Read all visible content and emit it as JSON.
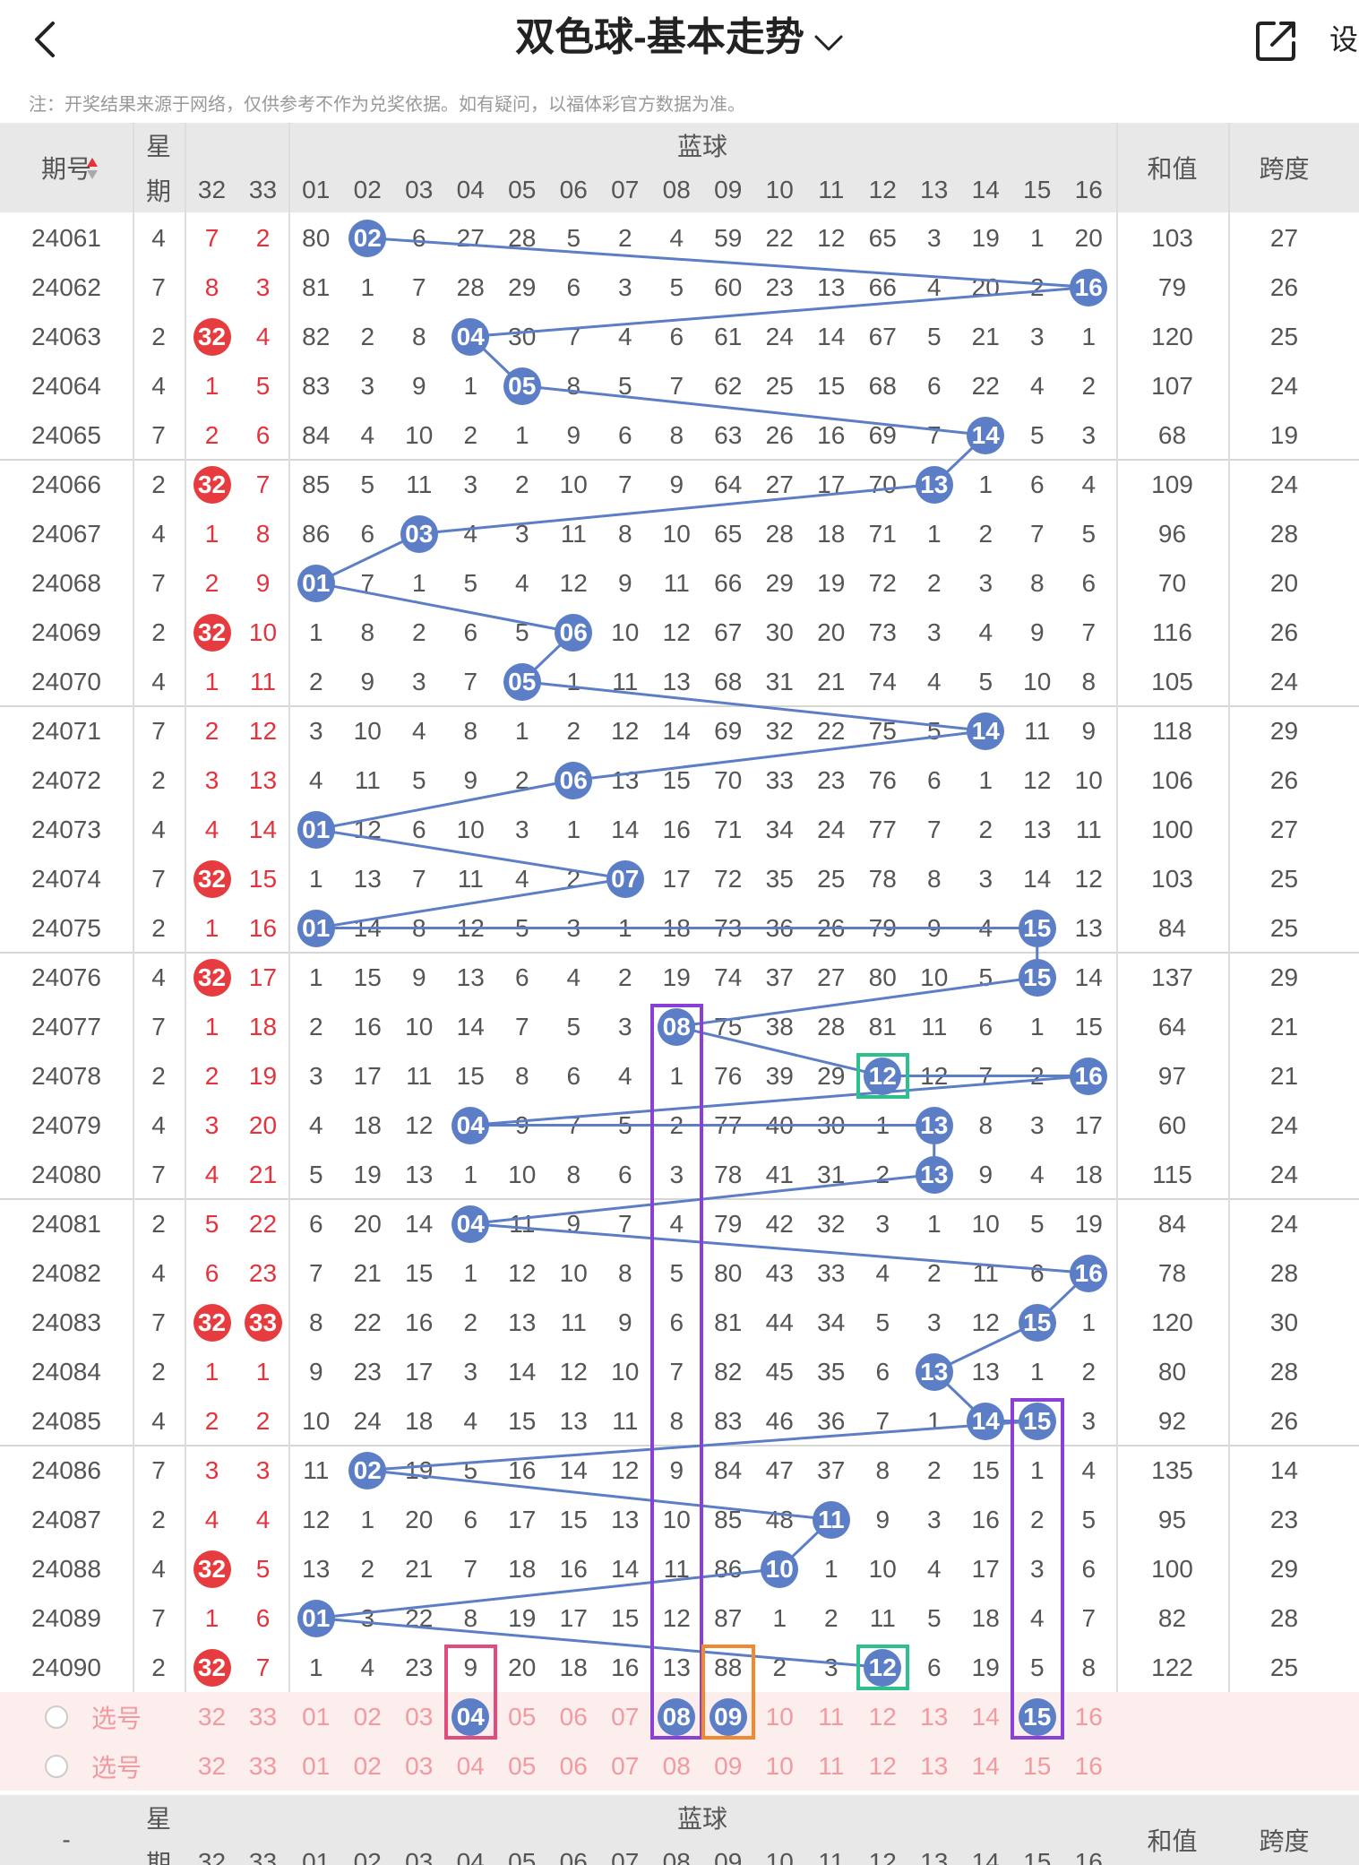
{
  "header": {
    "title": "双色球-基本走势",
    "settings_label": "设"
  },
  "notice": "注：开奖结果来源于网络，仅供参考不作为兑奖依据。如有疑问，以福体彩官方数据为准。",
  "table_header": {
    "period": "期号",
    "week_top": "星",
    "week_bottom": "期",
    "blue_title": "蓝球",
    "sum": "和值",
    "span": "跨度"
  },
  "red_col_labels": [
    "32",
    "33"
  ],
  "blue_col_labels": [
    "01",
    "02",
    "03",
    "04",
    "05",
    "06",
    "07",
    "08",
    "09",
    "10",
    "11",
    "12",
    "13",
    "14",
    "15",
    "16"
  ],
  "rows": [
    {
      "p": "24061",
      "w": "4",
      "r": [
        "7",
        "2"
      ],
      "b": [
        "80",
        "02",
        "6",
        "27",
        "28",
        "5",
        "2",
        "4",
        "59",
        "22",
        "12",
        "65",
        "3",
        "19",
        "1",
        "20"
      ],
      "s": "103",
      "k": "27"
    },
    {
      "p": "24062",
      "w": "7",
      "r": [
        "8",
        "3"
      ],
      "b": [
        "81",
        "1",
        "7",
        "28",
        "29",
        "6",
        "3",
        "5",
        "60",
        "23",
        "13",
        "66",
        "4",
        "20",
        "2",
        "16"
      ],
      "s": "79",
      "k": "26"
    },
    {
      "p": "24063",
      "w": "2",
      "r": [
        "32",
        "4"
      ],
      "b": [
        "82",
        "2",
        "8",
        "04",
        "30",
        "7",
        "4",
        "6",
        "61",
        "24",
        "14",
        "67",
        "5",
        "21",
        "3",
        "1"
      ],
      "s": "120",
      "k": "25"
    },
    {
      "p": "24064",
      "w": "4",
      "r": [
        "1",
        "5"
      ],
      "b": [
        "83",
        "3",
        "9",
        "1",
        "05",
        "8",
        "5",
        "7",
        "62",
        "25",
        "15",
        "68",
        "6",
        "22",
        "4",
        "2"
      ],
      "s": "107",
      "k": "24"
    },
    {
      "p": "24065",
      "w": "7",
      "r": [
        "2",
        "6"
      ],
      "b": [
        "84",
        "4",
        "10",
        "2",
        "1",
        "9",
        "6",
        "8",
        "63",
        "26",
        "16",
        "69",
        "7",
        "14",
        "5",
        "3"
      ],
      "s": "68",
      "k": "19"
    },
    {
      "p": "24066",
      "w": "2",
      "r": [
        "32",
        "7"
      ],
      "b": [
        "85",
        "5",
        "11",
        "3",
        "2",
        "10",
        "7",
        "9",
        "64",
        "27",
        "17",
        "70",
        "13",
        "1",
        "6",
        "4"
      ],
      "s": "109",
      "k": "24"
    },
    {
      "p": "24067",
      "w": "4",
      "r": [
        "1",
        "8"
      ],
      "b": [
        "86",
        "6",
        "03",
        "4",
        "3",
        "11",
        "8",
        "10",
        "65",
        "28",
        "18",
        "71",
        "1",
        "2",
        "7",
        "5"
      ],
      "s": "96",
      "k": "28"
    },
    {
      "p": "24068",
      "w": "7",
      "r": [
        "2",
        "9"
      ],
      "b": [
        "01",
        "7",
        "1",
        "5",
        "4",
        "12",
        "9",
        "11",
        "66",
        "29",
        "19",
        "72",
        "2",
        "3",
        "8",
        "6"
      ],
      "s": "70",
      "k": "20"
    },
    {
      "p": "24069",
      "w": "2",
      "r": [
        "32",
        "10"
      ],
      "b": [
        "1",
        "8",
        "2",
        "6",
        "5",
        "06",
        "10",
        "12",
        "67",
        "30",
        "20",
        "73",
        "3",
        "4",
        "9",
        "7"
      ],
      "s": "116",
      "k": "26"
    },
    {
      "p": "24070",
      "w": "4",
      "r": [
        "1",
        "11"
      ],
      "b": [
        "2",
        "9",
        "3",
        "7",
        "05",
        "1",
        "11",
        "13",
        "68",
        "31",
        "21",
        "74",
        "4",
        "5",
        "10",
        "8"
      ],
      "s": "105",
      "k": "24"
    },
    {
      "p": "24071",
      "w": "7",
      "r": [
        "2",
        "12"
      ],
      "b": [
        "3",
        "10",
        "4",
        "8",
        "1",
        "2",
        "12",
        "14",
        "69",
        "32",
        "22",
        "75",
        "5",
        "14",
        "11",
        "9"
      ],
      "s": "118",
      "k": "29"
    },
    {
      "p": "24072",
      "w": "2",
      "r": [
        "3",
        "13"
      ],
      "b": [
        "4",
        "11",
        "5",
        "9",
        "2",
        "06",
        "13",
        "15",
        "70",
        "33",
        "23",
        "76",
        "6",
        "1",
        "12",
        "10"
      ],
      "s": "106",
      "k": "26"
    },
    {
      "p": "24073",
      "w": "4",
      "r": [
        "4",
        "14"
      ],
      "b": [
        "01",
        "12",
        "6",
        "10",
        "3",
        "1",
        "14",
        "16",
        "71",
        "34",
        "24",
        "77",
        "7",
        "2",
        "13",
        "11"
      ],
      "s": "100",
      "k": "27"
    },
    {
      "p": "24074",
      "w": "7",
      "r": [
        "32",
        "15"
      ],
      "b": [
        "1",
        "13",
        "7",
        "11",
        "4",
        "2",
        "07",
        "17",
        "72",
        "35",
        "25",
        "78",
        "8",
        "3",
        "14",
        "12"
      ],
      "s": "103",
      "k": "25"
    },
    {
      "p": "24075",
      "w": "2",
      "r": [
        "1",
        "16"
      ],
      "b": [
        "01",
        "14",
        "8",
        "12",
        "5",
        "3",
        "1",
        "18",
        "73",
        "36",
        "26",
        "79",
        "9",
        "4",
        "15",
        "13"
      ],
      "s": "84",
      "k": "25"
    },
    {
      "p": "24076",
      "w": "4",
      "r": [
        "32",
        "17"
      ],
      "b": [
        "1",
        "15",
        "9",
        "13",
        "6",
        "4",
        "2",
        "19",
        "74",
        "37",
        "27",
        "80",
        "10",
        "5",
        "15",
        "14"
      ],
      "s": "137",
      "k": "29"
    },
    {
      "p": "24077",
      "w": "7",
      "r": [
        "1",
        "18"
      ],
      "b": [
        "2",
        "16",
        "10",
        "14",
        "7",
        "5",
        "3",
        "08",
        "75",
        "38",
        "28",
        "81",
        "11",
        "6",
        "1",
        "15"
      ],
      "s": "64",
      "k": "21"
    },
    {
      "p": "24078",
      "w": "2",
      "r": [
        "2",
        "19"
      ],
      "b": [
        "3",
        "17",
        "11",
        "15",
        "8",
        "6",
        "4",
        "1",
        "76",
        "39",
        "29",
        "12",
        "12",
        "7",
        "2",
        "16"
      ],
      "s": "97",
      "k": "21"
    },
    {
      "p": "24079",
      "w": "4",
      "r": [
        "3",
        "20"
      ],
      "b": [
        "4",
        "18",
        "12",
        "04",
        "9",
        "7",
        "5",
        "2",
        "77",
        "40",
        "30",
        "1",
        "13",
        "8",
        "3",
        "17"
      ],
      "s": "60",
      "k": "24"
    },
    {
      "p": "24080",
      "w": "7",
      "r": [
        "4",
        "21"
      ],
      "b": [
        "5",
        "19",
        "13",
        "1",
        "10",
        "8",
        "6",
        "3",
        "78",
        "41",
        "31",
        "2",
        "13",
        "9",
        "4",
        "18"
      ],
      "s": "115",
      "k": "24"
    },
    {
      "p": "24081",
      "w": "2",
      "r": [
        "5",
        "22"
      ],
      "b": [
        "6",
        "20",
        "14",
        "04",
        "11",
        "9",
        "7",
        "4",
        "79",
        "42",
        "32",
        "3",
        "1",
        "10",
        "5",
        "19"
      ],
      "s": "84",
      "k": "24"
    },
    {
      "p": "24082",
      "w": "4",
      "r": [
        "6",
        "23"
      ],
      "b": [
        "7",
        "21",
        "15",
        "1",
        "12",
        "10",
        "8",
        "5",
        "80",
        "43",
        "33",
        "4",
        "2",
        "11",
        "6",
        "16"
      ],
      "s": "78",
      "k": "28"
    },
    {
      "p": "24083",
      "w": "7",
      "r": [
        "32",
        "33"
      ],
      "b": [
        "8",
        "22",
        "16",
        "2",
        "13",
        "11",
        "9",
        "6",
        "81",
        "44",
        "34",
        "5",
        "3",
        "12",
        "15",
        "1"
      ],
      "s": "120",
      "k": "30"
    },
    {
      "p": "24084",
      "w": "2",
      "r": [
        "1",
        "1"
      ],
      "b": [
        "9",
        "23",
        "17",
        "3",
        "14",
        "12",
        "10",
        "7",
        "82",
        "45",
        "35",
        "6",
        "13",
        "13",
        "1",
        "2"
      ],
      "s": "80",
      "k": "28"
    },
    {
      "p": "24085",
      "w": "4",
      "r": [
        "2",
        "2"
      ],
      "b": [
        "10",
        "24",
        "18",
        "4",
        "15",
        "13",
        "11",
        "8",
        "83",
        "46",
        "36",
        "7",
        "1",
        "14",
        "15",
        "3"
      ],
      "s": "92",
      "k": "26"
    },
    {
      "p": "24086",
      "w": "7",
      "r": [
        "3",
        "3"
      ],
      "b": [
        "11",
        "02",
        "19",
        "5",
        "16",
        "14",
        "12",
        "9",
        "84",
        "47",
        "37",
        "8",
        "2",
        "15",
        "1",
        "4"
      ],
      "s": "135",
      "k": "14"
    },
    {
      "p": "24087",
      "w": "2",
      "r": [
        "4",
        "4"
      ],
      "b": [
        "12",
        "1",
        "20",
        "6",
        "17",
        "15",
        "13",
        "10",
        "85",
        "48",
        "11",
        "9",
        "3",
        "16",
        "2",
        "5"
      ],
      "s": "95",
      "k": "23"
    },
    {
      "p": "24088",
      "w": "4",
      "r": [
        "32",
        "5"
      ],
      "b": [
        "13",
        "2",
        "21",
        "7",
        "18",
        "16",
        "14",
        "11",
        "86",
        "10",
        "1",
        "10",
        "4",
        "17",
        "3",
        "6"
      ],
      "s": "100",
      "k": "29"
    },
    {
      "p": "24089",
      "w": "7",
      "r": [
        "1",
        "6"
      ],
      "b": [
        "01",
        "3",
        "22",
        "8",
        "19",
        "17",
        "15",
        "12",
        "87",
        "1",
        "2",
        "11",
        "5",
        "18",
        "4",
        "7"
      ],
      "s": "82",
      "k": "28"
    },
    {
      "p": "24090",
      "w": "2",
      "r": [
        "32",
        "7"
      ],
      "b": [
        "1",
        "4",
        "23",
        "9",
        "20",
        "18",
        "16",
        "13",
        "88",
        "2",
        "3",
        "12",
        "6",
        "19",
        "5",
        "8"
      ],
      "s": "122",
      "k": "25"
    }
  ],
  "pick_label": "选号",
  "pick_red": [
    "32",
    "33"
  ],
  "pick_blue": [
    "01",
    "02",
    "03",
    "04",
    "05",
    "06",
    "07",
    "08",
    "09",
    "10",
    "11",
    "12",
    "13",
    "14",
    "15",
    "16"
  ],
  "footer_header": {
    "period": "-",
    "week_top": "星",
    "week_bottom": "期",
    "blue_title": "蓝球",
    "sum": "和值",
    "span": "跨度"
  },
  "colors": {
    "blue_ball": "#5b7ec6",
    "red_ball": "#e63c3f",
    "red_text": "#e5333d",
    "select_bg": "#fdeeee",
    "header_bg": "#e8e8e8",
    "box_purple": "#8a3fd6",
    "box_green": "#2dbf8c",
    "box_pink": "#e04d7c",
    "box_orange": "#f08a2e"
  },
  "icons": {
    "back": "back-chevron-icon",
    "title_dropdown": "chevron-down-icon",
    "share": "share-icon"
  }
}
